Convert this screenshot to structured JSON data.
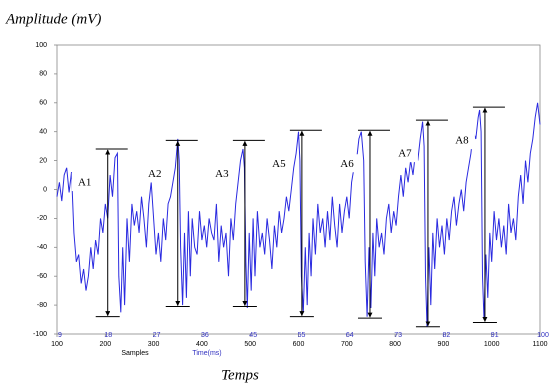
{
  "chart_data": {
    "type": "line",
    "title": "Amplitude (mV)",
    "xlabel": "Temps",
    "sample_label": "Samples",
    "time_label": "Time(ms)",
    "color": "#2a2ae0",
    "xlim": [
      100,
      1100
    ],
    "xticks": [
      100,
      200,
      300,
      400,
      500,
      600,
      700,
      800,
      900,
      1000,
      1100
    ],
    "sample_ticks": [
      9,
      18,
      27,
      36,
      45,
      55,
      64,
      73,
      82,
      91,
      100
    ],
    "ylim": [
      -100,
      100
    ],
    "yticks": [
      -100,
      -80,
      -60,
      -40,
      -20,
      0,
      20,
      40,
      60,
      80,
      100
    ],
    "x": [
      100,
      105,
      110,
      115,
      120,
      125,
      130,
      135,
      140,
      145,
      150,
      155,
      160,
      165,
      170,
      175,
      180,
      185,
      190,
      195,
      200,
      205,
      210,
      215,
      220,
      225,
      228,
      232,
      236,
      240,
      245,
      250,
      255,
      260,
      265,
      270,
      275,
      280,
      285,
      290,
      295,
      300,
      305,
      310,
      315,
      320,
      325,
      330,
      335,
      340,
      345,
      350,
      353,
      356,
      360,
      364,
      368,
      372,
      376,
      380,
      385,
      390,
      395,
      400,
      405,
      410,
      415,
      420,
      425,
      430,
      435,
      440,
      445,
      450,
      455,
      460,
      465,
      470,
      475,
      480,
      485,
      488,
      491,
      494,
      498,
      502,
      506,
      510,
      515,
      520,
      525,
      530,
      535,
      540,
      545,
      550,
      555,
      560,
      565,
      570,
      575,
      580,
      585,
      590,
      595,
      600,
      603,
      606,
      610,
      614,
      618,
      622,
      626,
      630,
      635,
      640,
      645,
      650,
      655,
      660,
      665,
      670,
      675,
      680,
      685,
      690,
      695,
      700,
      705,
      710,
      715,
      720,
      725,
      730,
      735,
      738,
      742,
      746,
      750,
      754,
      758,
      762,
      767,
      772,
      777,
      782,
      787,
      792,
      797,
      802,
      807,
      812,
      817,
      822,
      827,
      832,
      837,
      842,
      847,
      852,
      857,
      860,
      863,
      866,
      870,
      874,
      878,
      882,
      887,
      892,
      897,
      902,
      907,
      912,
      917,
      922,
      927,
      932,
      937,
      942,
      947,
      952,
      957,
      962,
      967,
      972,
      975,
      978,
      981,
      984,
      988,
      992,
      996,
      1000,
      1005,
      1010,
      1015,
      1020,
      1025,
      1030,
      1035,
      1040,
      1045,
      1050,
      1055,
      1060,
      1065,
      1070,
      1075,
      1080,
      1085,
      1090,
      1095,
      1100
    ],
    "values": [
      -5,
      5,
      -8,
      10,
      15,
      -2,
      12,
      -30,
      -50,
      -45,
      -65,
      -55,
      -70,
      -60,
      -40,
      -55,
      -35,
      -45,
      -20,
      -30,
      -10,
      -20,
      10,
      -5,
      22,
      25,
      -60,
      -85,
      -40,
      -80,
      -20,
      -50,
      -10,
      -25,
      -15,
      -30,
      -5,
      -20,
      -40,
      -10,
      5,
      -20,
      -45,
      -30,
      -50,
      -20,
      -35,
      -10,
      -5,
      5,
      15,
      35,
      20,
      -40,
      -80,
      -30,
      -75,
      -15,
      -60,
      -20,
      -40,
      -45,
      -15,
      -35,
      -25,
      -40,
      -20,
      -30,
      -35,
      -10,
      -50,
      -25,
      -40,
      -30,
      -60,
      -20,
      -35,
      -10,
      5,
      20,
      28,
      15,
      -50,
      -82,
      -30,
      -70,
      -20,
      -60,
      -15,
      -40,
      -30,
      -45,
      -20,
      -35,
      -55,
      -25,
      -40,
      -15,
      -30,
      -20,
      -5,
      -15,
      0,
      15,
      25,
      40,
      20,
      -60,
      -85,
      -40,
      -80,
      -30,
      -60,
      -20,
      -45,
      -10,
      -30,
      -20,
      -40,
      -15,
      -35,
      -5,
      -25,
      -40,
      -10,
      -30,
      -15,
      -5,
      -20,
      5,
      15,
      20,
      35,
      40,
      20,
      -50,
      -88,
      -40,
      -82,
      -30,
      -60,
      -20,
      -40,
      -30,
      -45,
      -20,
      -10,
      -30,
      -15,
      -25,
      -5,
      10,
      -5,
      15,
      5,
      20,
      10,
      25,
      20,
      35,
      47,
      30,
      -60,
      -95,
      -40,
      -80,
      -30,
      -55,
      -20,
      -40,
      -25,
      -45,
      -20,
      -35,
      -15,
      -5,
      -25,
      -10,
      0,
      -15,
      5,
      15,
      25,
      40,
      35,
      50,
      55,
      40,
      -60,
      -90,
      -45,
      -75,
      -30,
      -50,
      -15,
      -35,
      -20,
      -40,
      -25,
      -45,
      -10,
      -30,
      -20,
      -35,
      -5,
      10,
      -10,
      20,
      5,
      25,
      35,
      50,
      60,
      45
    ],
    "annotations": [
      {
        "label": "A1",
        "x": 205,
        "top": 28,
        "bottom": -88
      },
      {
        "label": "A2",
        "x": 350,
        "top": 34,
        "bottom": -81
      },
      {
        "label": "A3",
        "x": 489,
        "top": 34,
        "bottom": -81
      },
      {
        "label": "A5",
        "x": 607,
        "top": 41,
        "bottom": -88
      },
      {
        "label": "A6",
        "x": 748,
        "top": 41,
        "bottom": -89
      },
      {
        "label": "A7",
        "x": 868,
        "top": 48,
        "bottom": -95
      },
      {
        "label": "A8",
        "x": 986,
        "top": 57,
        "bottom": -92
      }
    ]
  }
}
